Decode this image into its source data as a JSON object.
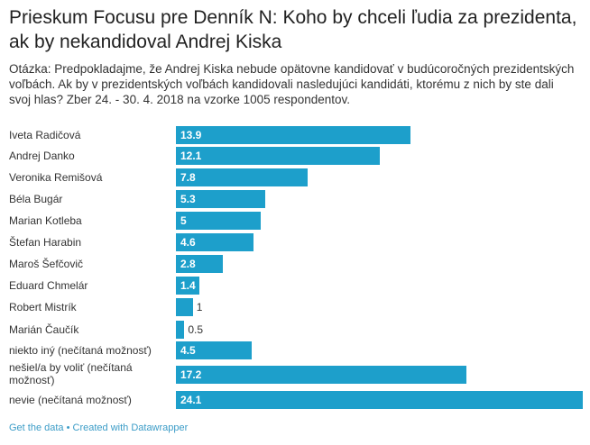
{
  "title": "Prieskum Focusu pre Denník N: Koho by chceli ľudia za prezidenta, ak by nekandidoval Andrej Kiska",
  "description": "Otázka: Predpokladajme, že Andrej Kiska nebude opätovne kandidovať v budúcoročných prezidentských voľbách. Ak by v prezidentských voľbách kandidovali nasledujúci kandidáti, ktorému z nich by ste dali svoj hlas? Zber 24. - 30. 4. 2018 na vzorke 1005 respondentov.",
  "footer": {
    "get_data": "Get the data",
    "separator": " • ",
    "created": "Created with Datawrapper"
  },
  "colors": {
    "bar": "#1d9fcb"
  },
  "chart_data": {
    "type": "bar",
    "orientation": "horizontal",
    "categories": [
      "Iveta Radičová",
      "Andrej Danko",
      "Veronika Remišová",
      "Béla Bugár",
      "Marian Kotleba",
      "Štefan Harabin",
      "Maroš Šefčovič",
      "Eduard Chmelár",
      "Robert Mistrík",
      "Marián Čaučík",
      "niekto iný (nečítaná možnosť)",
      "nešiel/a by voliť (nečítaná možnosť)",
      "nevie (nečítaná možnosť)"
    ],
    "values": [
      13.9,
      12.1,
      7.8,
      5.3,
      5,
      4.6,
      2.8,
      1.4,
      1,
      0.5,
      4.5,
      17.2,
      24.1
    ],
    "labels": [
      "13.9",
      "12.1",
      "7.8",
      "5.3",
      "5",
      "4.6",
      "2.8",
      "1.4",
      "1",
      "0.5",
      "4.5",
      "17.2",
      "24.1"
    ],
    "xlim": [
      0,
      24.1
    ]
  }
}
